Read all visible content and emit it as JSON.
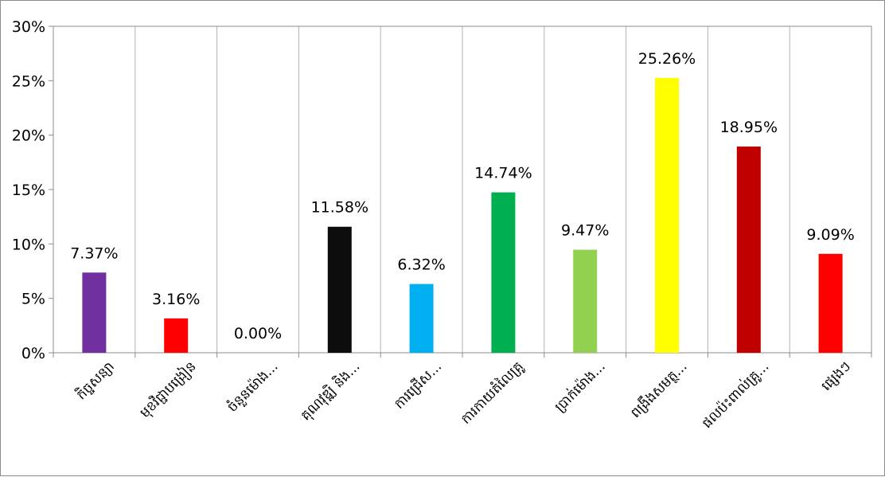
{
  "chart_data": {
    "type": "bar",
    "categories": [
      "កិច្ចសន្យា",
      "មុខវិជ្ជាបង្រៀន",
      "ចំនួនម៉ោង...",
      "គុណវុឌ្ឍិ និង...",
      "ការជ្រើស...",
      "ការកាយតំលៃគ្រូ",
      "ប្រាក់ម៉ោង...",
      "ពង្រឹងសមត្ថ...",
      "ផលប៉ះពាល់គ្រូ...",
      "ផ្សេងៗ"
    ],
    "values": [
      7.37,
      3.16,
      0.0,
      11.58,
      6.32,
      14.74,
      9.47,
      25.26,
      18.95,
      9.09
    ],
    "data_labels": [
      "7.37%",
      "3.16%",
      "0.00%",
      "11.58%",
      "6.32%",
      "14.74%",
      "9.47%",
      "25.26%",
      "18.95%",
      "9.09%"
    ],
    "colors": [
      "#7030a0",
      "#ff0000",
      "#ffffff",
      "#0d0d0d",
      "#00b0f0",
      "#00b050",
      "#92d050",
      "#ffff00",
      "#c00000",
      "#ff0000"
    ],
    "ylim": [
      0,
      30
    ],
    "yticks": [
      0,
      5,
      10,
      15,
      20,
      25,
      30
    ],
    "ytick_labels": [
      "0%",
      "5%",
      "10%",
      "15%",
      "20%",
      "25%",
      "30%"
    ],
    "grid": "vertical",
    "legend": "none"
  }
}
